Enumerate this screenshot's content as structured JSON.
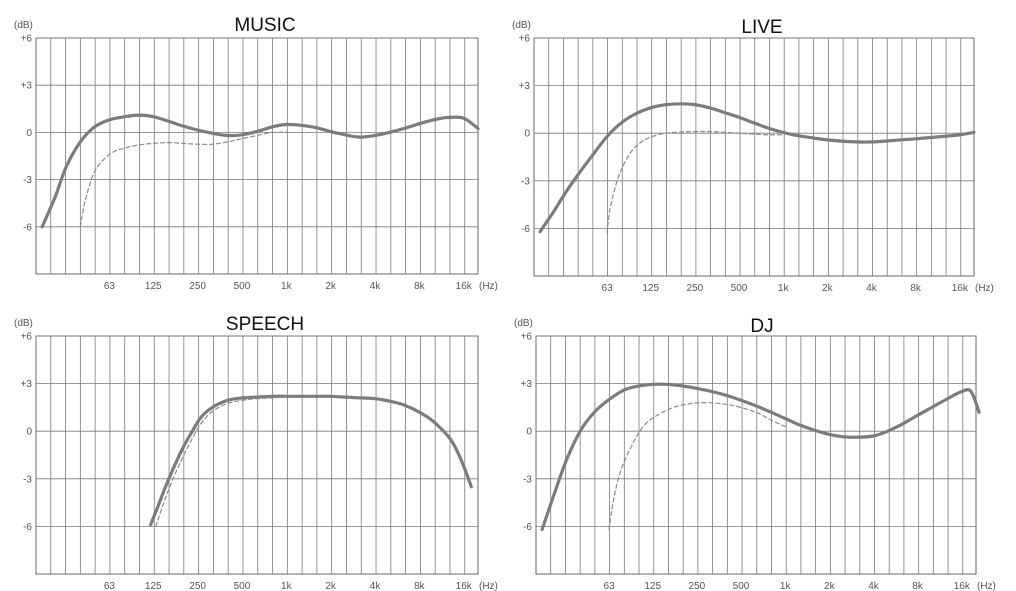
{
  "chart_data": [
    {
      "type": "line",
      "title": "MUSIC",
      "ylabel": "(dB)",
      "xunit": "(Hz)",
      "ylim": [
        -9,
        6
      ],
      "y_ticks": [
        "+6",
        "+3",
        "0",
        "-3",
        "-6"
      ],
      "x_ticks": [
        "63",
        "125",
        "250",
        "500",
        "1k",
        "2k",
        "4k",
        "8k",
        "16k"
      ],
      "series": [
        {
          "style": "solid",
          "x": [
            22,
            27,
            32,
            40,
            50,
            63,
            80,
            100,
            125,
            160,
            200,
            250,
            315,
            400,
            500,
            630,
            800,
            1000,
            1250,
            1600,
            2000,
            2500,
            3150,
            4000,
            5000,
            6300,
            8000,
            10000,
            12500,
            16000,
            20000
          ],
          "y": [
            -6.0,
            -4.1,
            -2.2,
            -0.6,
            0.35,
            0.8,
            1.0,
            1.1,
            1.0,
            0.7,
            0.4,
            0.15,
            -0.05,
            -0.2,
            -0.15,
            0.05,
            0.35,
            0.5,
            0.45,
            0.3,
            0.05,
            -0.15,
            -0.3,
            -0.2,
            0.0,
            0.25,
            0.55,
            0.8,
            0.95,
            0.9,
            0.25
          ]
        },
        {
          "style": "dashed",
          "x": [
            40,
            43,
            50,
            63,
            80,
            100,
            125,
            160,
            200,
            250,
            315,
            400,
            500,
            630,
            800,
            1000
          ],
          "y": [
            -6.0,
            -4.4,
            -2.5,
            -1.4,
            -1.0,
            -0.8,
            -0.7,
            -0.65,
            -0.7,
            -0.75,
            -0.75,
            -0.6,
            -0.4,
            -0.2,
            0.0,
            0.0
          ]
        }
      ]
    },
    {
      "type": "line",
      "title": "LIVE",
      "ylabel": "(dB)",
      "xunit": "(Hz)",
      "ylim": [
        -9,
        6
      ],
      "y_ticks": [
        "+6",
        "+3",
        "0",
        "-3",
        "-6"
      ],
      "x_ticks": [
        "63",
        "125",
        "250",
        "500",
        "1k",
        "2k",
        "4k",
        "8k",
        "16k"
      ],
      "series": [
        {
          "style": "solid",
          "x": [
            22,
            27,
            32,
            40,
            50,
            63,
            80,
            100,
            125,
            160,
            200,
            250,
            315,
            400,
            500,
            630,
            800,
            1000,
            1250,
            1600,
            2000,
            2500,
            3150,
            4000,
            5000,
            6300,
            8000,
            10000,
            12500,
            16000,
            20000
          ],
          "y": [
            -6.2,
            -5.0,
            -3.9,
            -2.6,
            -1.4,
            -0.2,
            0.7,
            1.25,
            1.6,
            1.8,
            1.85,
            1.8,
            1.6,
            1.3,
            1.0,
            0.65,
            0.3,
            0.05,
            -0.15,
            -0.3,
            -0.42,
            -0.5,
            -0.55,
            -0.55,
            -0.5,
            -0.42,
            -0.35,
            -0.28,
            -0.2,
            -0.1,
            0.05
          ]
        },
        {
          "style": "dashed",
          "x": [
            63,
            66,
            75,
            90,
            110,
            140,
            180,
            250,
            315,
            400,
            500,
            630,
            800,
            1000
          ],
          "y": [
            -6.3,
            -4.8,
            -2.8,
            -1.3,
            -0.5,
            -0.1,
            0.05,
            0.1,
            0.1,
            0.05,
            0.0,
            -0.05,
            -0.1,
            -0.1
          ]
        }
      ]
    },
    {
      "type": "line",
      "title": "SPEECH",
      "ylabel": "(dB)",
      "xunit": "(Hz)",
      "ylim": [
        -9,
        6
      ],
      "y_ticks": [
        "+6",
        "+3",
        "0",
        "-3",
        "-6"
      ],
      "x_ticks": [
        "63",
        "125",
        "250",
        "500",
        "1k",
        "2k",
        "4k",
        "8k",
        "16k"
      ],
      "series": [
        {
          "style": "solid",
          "x": [
            120,
            135,
            150,
            170,
            200,
            230,
            265,
            315,
            400,
            500,
            630,
            800,
            1000,
            1250,
            1600,
            2000,
            2500,
            3150,
            4000,
            5000,
            6300,
            8000,
            10000,
            12500,
            14000,
            16000,
            18000
          ],
          "y": [
            -5.9,
            -4.7,
            -3.6,
            -2.4,
            -1.0,
            0.0,
            0.9,
            1.5,
            1.95,
            2.1,
            2.15,
            2.2,
            2.2,
            2.2,
            2.2,
            2.2,
            2.15,
            2.1,
            2.05,
            1.9,
            1.65,
            1.2,
            0.6,
            -0.3,
            -1.0,
            -2.2,
            -3.5
          ]
        },
        {
          "style": "dashed",
          "x": [
            130,
            145,
            165,
            190,
            220,
            260,
            315,
            400,
            500,
            630,
            800,
            1000
          ],
          "y": [
            -6.0,
            -4.7,
            -3.3,
            -2.0,
            -0.8,
            0.4,
            1.25,
            1.75,
            1.95,
            2.05,
            2.1,
            2.15
          ]
        }
      ]
    },
    {
      "type": "line",
      "title": "DJ",
      "ylabel": "(dB)",
      "xunit": "(Hz)",
      "ylim": [
        -9,
        6
      ],
      "y_ticks": [
        "+6",
        "+3",
        "0",
        "-3",
        "-6"
      ],
      "x_ticks": [
        "63",
        "125",
        "250",
        "500",
        "1k",
        "2k",
        "4k",
        "8k",
        "16k"
      ],
      "series": [
        {
          "style": "solid",
          "x": [
            22,
            27,
            32,
            40,
            50,
            63,
            80,
            100,
            125,
            160,
            200,
            250,
            315,
            400,
            500,
            630,
            800,
            1000,
            1250,
            1600,
            2000,
            2500,
            3150,
            4000,
            5000,
            6300,
            8000,
            10000,
            12500,
            16000,
            18500,
            21000
          ],
          "y": [
            -6.2,
            -3.8,
            -1.9,
            0.0,
            1.2,
            2.0,
            2.6,
            2.85,
            2.95,
            2.95,
            2.85,
            2.7,
            2.5,
            2.25,
            1.95,
            1.6,
            1.2,
            0.8,
            0.4,
            0.05,
            -0.2,
            -0.35,
            -0.38,
            -0.3,
            0.0,
            0.45,
            1.0,
            1.5,
            2.0,
            2.5,
            2.5,
            1.2
          ]
        },
        {
          "style": "dashed",
          "x": [
            63,
            67,
            75,
            90,
            110,
            140,
            180,
            230,
            280,
            350,
            450,
            630,
            800,
            1000
          ],
          "y": [
            -6.2,
            -4.5,
            -2.6,
            -0.9,
            0.4,
            1.1,
            1.55,
            1.75,
            1.8,
            1.75,
            1.6,
            1.2,
            0.7,
            0.3
          ]
        }
      ]
    }
  ]
}
